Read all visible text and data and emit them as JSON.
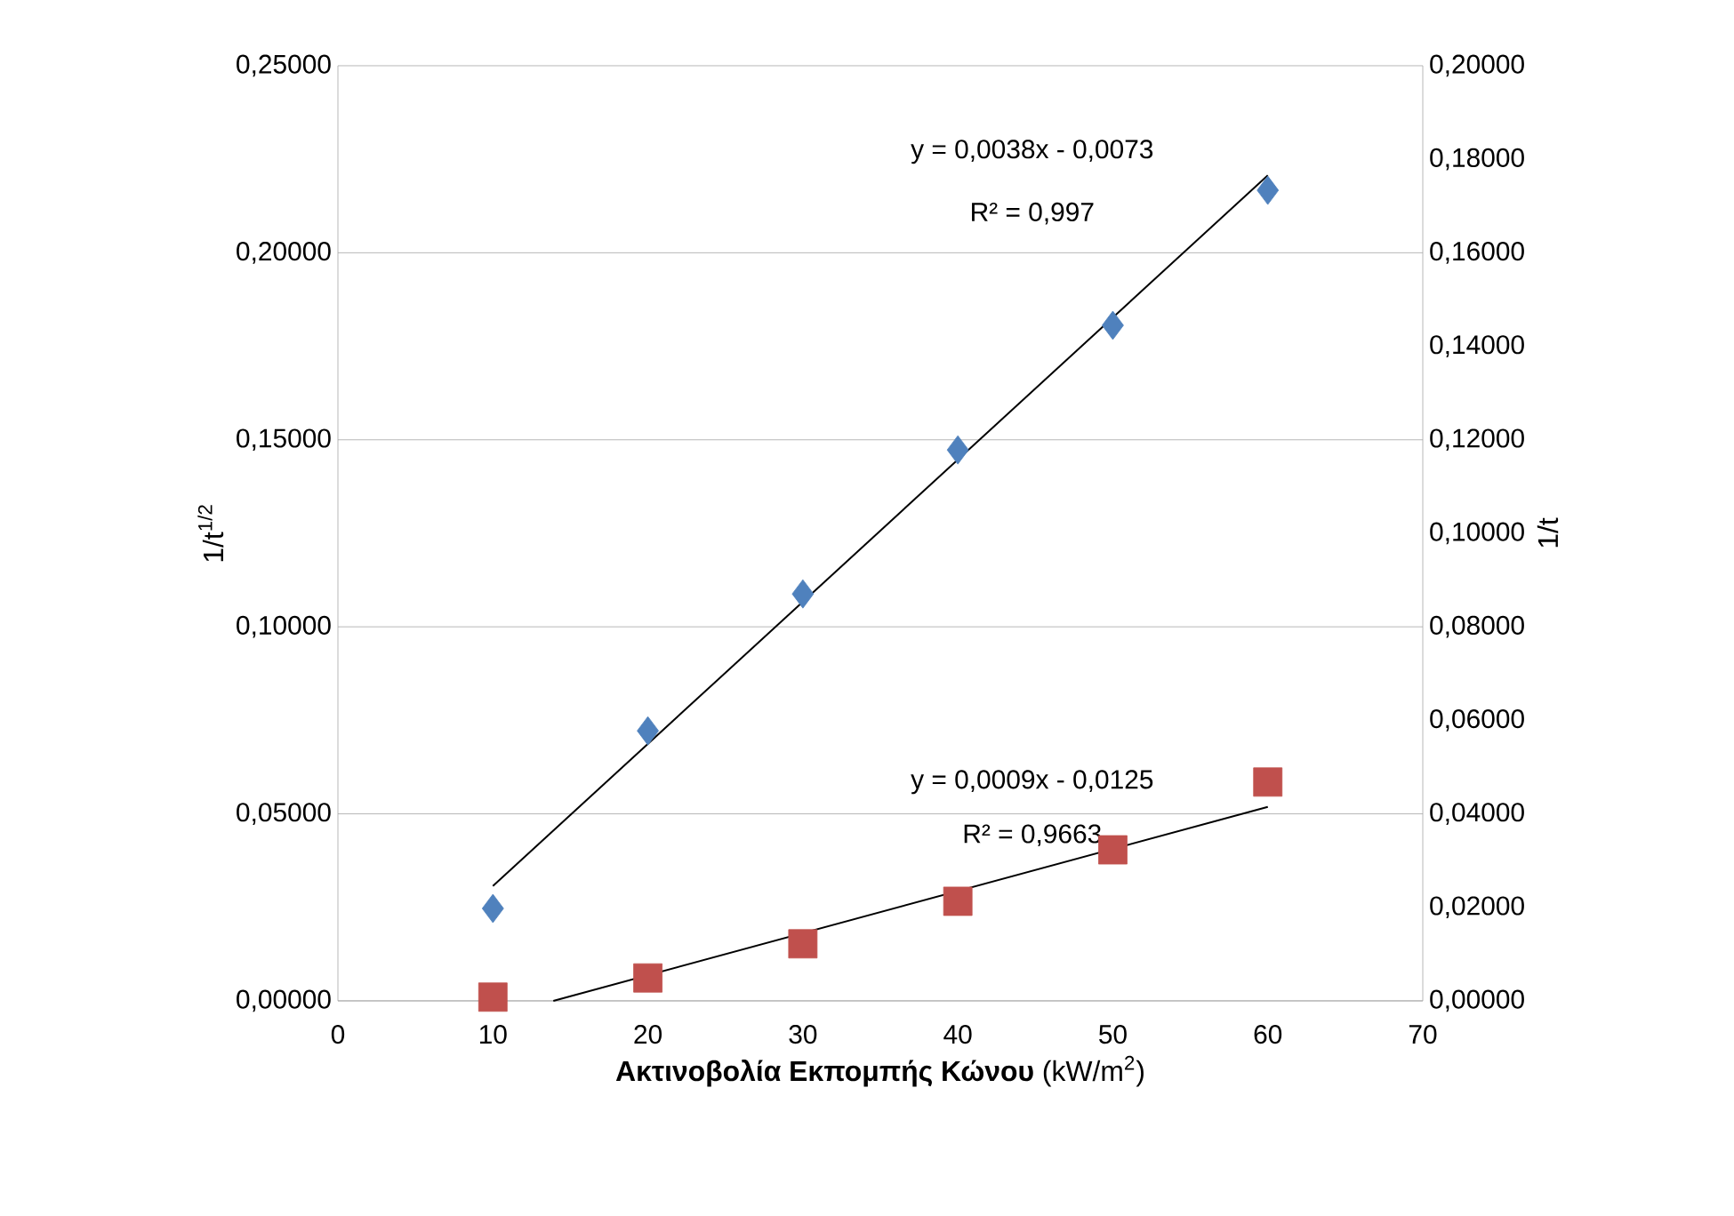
{
  "chart_data": {
    "type": "scatter",
    "xlabel": "**Ακτινοβολία Εκπομπής Κώνου** (kW/m$^{2}$)",
    "ylabel": "1/t$^{1/2}$",
    "y2label": "1/t",
    "xlim": [
      0,
      70
    ],
    "xticks": [
      0,
      10,
      20,
      30,
      40,
      50,
      60,
      70
    ],
    "ylim": [
      0,
      0.25
    ],
    "yticks": [
      {
        "value": 0,
        "label": "0,00000"
      },
      {
        "value": 0.05,
        "label": "0,05000"
      },
      {
        "value": 0.1,
        "label": "0,10000"
      },
      {
        "value": 0.15,
        "label": "0,15000"
      },
      {
        "value": 0.2,
        "label": "0,20000"
      },
      {
        "value": 0.25,
        "label": "0,25000"
      }
    ],
    "y2lim": [
      0,
      0.2
    ],
    "y2ticks": [
      {
        "value": 0,
        "label": "0,00000"
      },
      {
        "value": 0.02,
        "label": "0,02000"
      },
      {
        "value": 0.04,
        "label": "0,04000"
      },
      {
        "value": 0.06,
        "label": "0,06000"
      },
      {
        "value": 0.08,
        "label": "0,08000"
      },
      {
        "value": 0.1,
        "label": "0,10000"
      },
      {
        "value": 0.12,
        "label": "0,12000"
      },
      {
        "value": 0.14,
        "label": "0,14000"
      },
      {
        "value": 0.16,
        "label": "0,16000"
      },
      {
        "value": 0.18,
        "label": "0,18000"
      },
      {
        "value": 0.2,
        "label": "0,20000"
      }
    ],
    "grid": "y",
    "x": [
      10,
      20,
      30,
      40,
      50,
      60
    ],
    "series": [
      {
        "marker": "diamond",
        "color": "#4f81bd",
        "values": [
          0.0247,
          0.0722,
          0.1088,
          0.1473,
          0.1806,
          0.2167
        ]
      },
      {
        "marker": "square",
        "color": "#c0504d",
        "axis": "y2",
        "values": [
          0.0008,
          0.0049,
          0.0122,
          0.0213,
          0.0323,
          0.0468
        ]
      },
      {
        "type": "line",
        "marker": "none",
        "color": "#000000",
        "x": [
          10,
          60
        ],
        "values": [
          0.0307,
          0.2207
        ]
      },
      {
        "type": "line",
        "marker": "none",
        "color": "#000000",
        "axis": "y2",
        "x": [
          13.9,
          60
        ],
        "values": [
          0,
          0.0415
        ]
      }
    ],
    "annotations": [
      "y = 0,0038x - 0,0073",
      "R² = 0,997",
      "y = 0,0009x - 0,0125",
      "R² = 0,9663"
    ]
  }
}
